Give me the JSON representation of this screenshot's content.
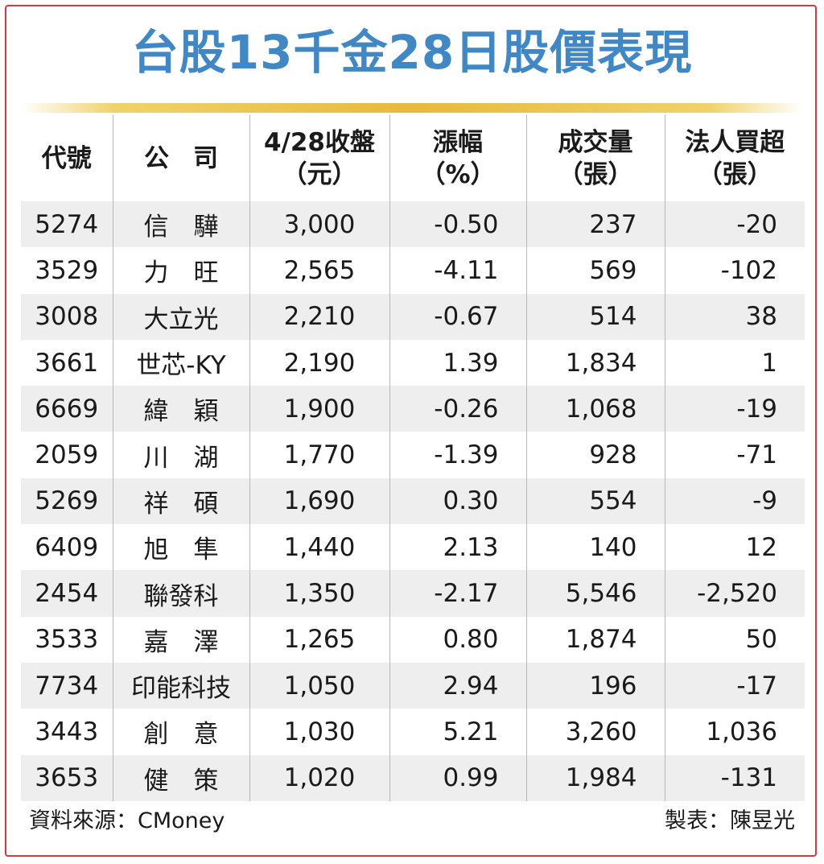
{
  "title": "台股13千金28日股價表現",
  "headers": {
    "code": [
      "代號"
    ],
    "name": [
      "公司"
    ],
    "close": [
      "4/28收盤",
      "（元）"
    ],
    "change": [
      "漲幅",
      "（%）"
    ],
    "volume": [
      "成交量",
      "（張）"
    ],
    "institutional": [
      "法人買超",
      "（張）"
    ]
  },
  "rows": [
    {
      "code": "5274",
      "name": "信　驊",
      "close": "3,000",
      "change": "-0.50",
      "volume": "237",
      "net_buy": "-20"
    },
    {
      "code": "3529",
      "name": "力　旺",
      "close": "2,565",
      "change": "-4.11",
      "volume": "569",
      "net_buy": "-102"
    },
    {
      "code": "3008",
      "name": "大立光",
      "close": "2,210",
      "change": "-0.67",
      "volume": "514",
      "net_buy": "38"
    },
    {
      "code": "3661",
      "name": "世芯-KY",
      "close": "2,190",
      "change": "1.39",
      "volume": "1,834",
      "net_buy": "1"
    },
    {
      "code": "6669",
      "name": "緯　穎",
      "close": "1,900",
      "change": "-0.26",
      "volume": "1,068",
      "net_buy": "-19"
    },
    {
      "code": "2059",
      "name": "川　湖",
      "close": "1,770",
      "change": "-1.39",
      "volume": "928",
      "net_buy": "-71"
    },
    {
      "code": "5269",
      "name": "祥　碩",
      "close": "1,690",
      "change": "0.30",
      "volume": "554",
      "net_buy": "-9"
    },
    {
      "code": "6409",
      "name": "旭　隼",
      "close": "1,440",
      "change": "2.13",
      "volume": "140",
      "net_buy": "12"
    },
    {
      "code": "2454",
      "name": "聯發科",
      "close": "1,350",
      "change": "-2.17",
      "volume": "5,546",
      "net_buy": "-2,520"
    },
    {
      "code": "3533",
      "name": "嘉　澤",
      "close": "1,265",
      "change": "0.80",
      "volume": "1,874",
      "net_buy": "50"
    },
    {
      "code": "7734",
      "name": "印能科技",
      "close": "1,050",
      "change": "2.94",
      "volume": "196",
      "net_buy": "-17"
    },
    {
      "code": "3443",
      "name": "創　意",
      "close": "1,030",
      "change": "5.21",
      "volume": "3,260",
      "net_buy": "1,036"
    },
    {
      "code": "3653",
      "name": "健　策",
      "close": "1,020",
      "change": "0.99",
      "volume": "1,984",
      "net_buy": "-131"
    }
  ],
  "footer": {
    "source": "資料來源：CMoney",
    "credit": "製表：陳昱光"
  },
  "colors": {
    "title": "#3f88c5",
    "frame": "#d9363e",
    "accent_bar": "#e8b93a",
    "row_shade": "#eeeeee"
  }
}
